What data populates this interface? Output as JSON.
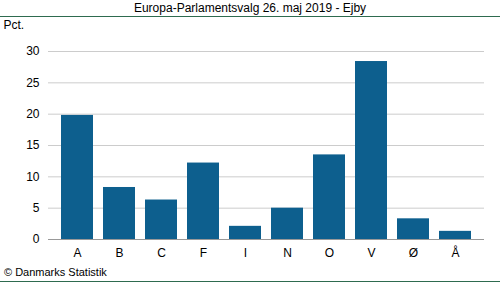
{
  "chart_data": {
    "type": "bar",
    "title": "Europa-Parlamentsvalg 26. maj 2019 - Ejby",
    "y_label": "Pct.",
    "caption": "© Danmarks Statistik",
    "categories": [
      "A",
      "B",
      "C",
      "F",
      "I",
      "N",
      "O",
      "V",
      "Ø",
      "Å"
    ],
    "values": [
      19.8,
      8.3,
      6.3,
      12.2,
      2.1,
      5.0,
      13.5,
      28.4,
      3.3,
      1.3
    ],
    "color": "#0d5f8e",
    "ylim": [
      0,
      30
    ],
    "yticks": [
      0,
      5,
      10,
      15,
      20,
      25,
      30
    ],
    "grid": true
  }
}
